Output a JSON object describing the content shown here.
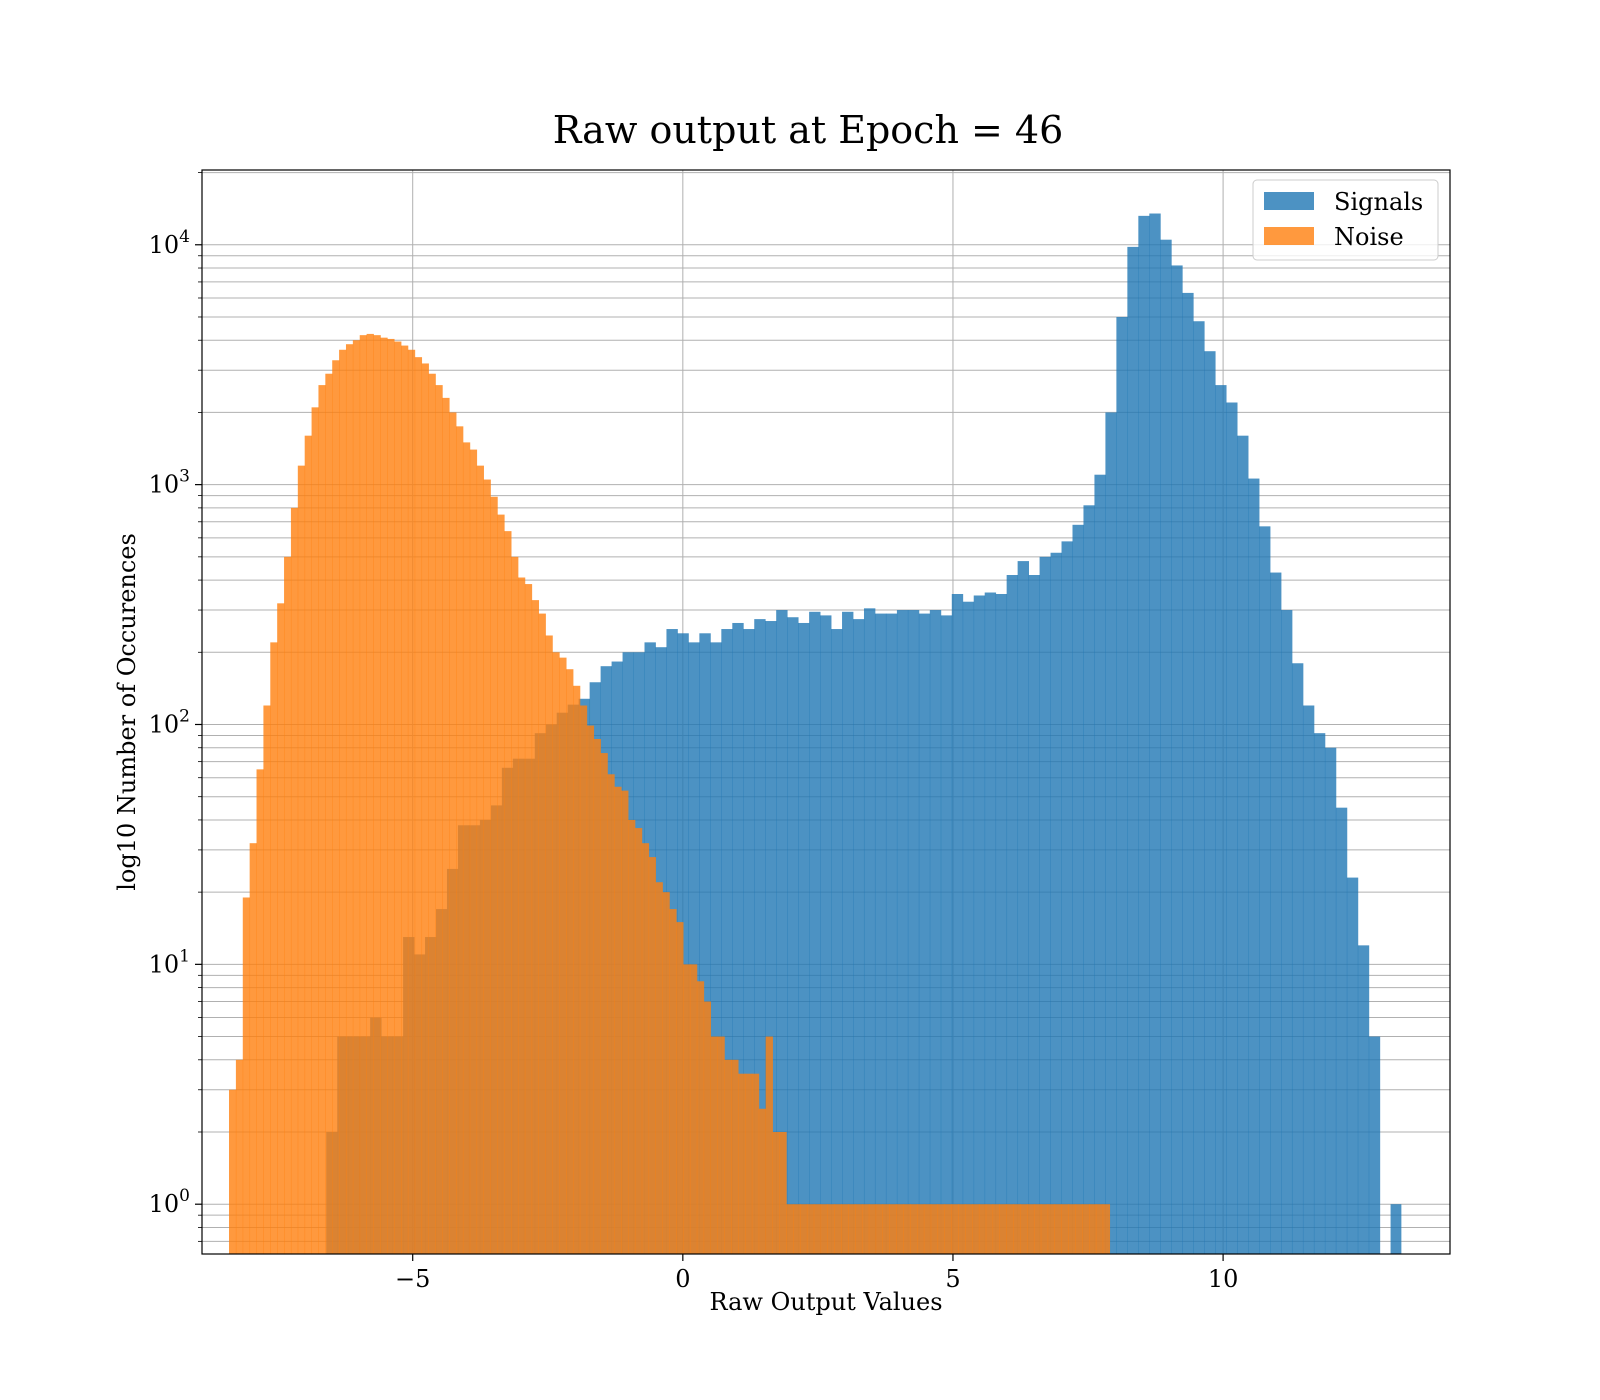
{
  "chart_data": {
    "type": "bar",
    "title": "Raw output at Epoch = 46",
    "xlabel": "Raw Output Values",
    "ylabel": "log10 Number of Occurences",
    "xlim": [
      -8.9,
      14.2
    ],
    "ylim": [
      0.62,
      20500
    ],
    "yscale": "log",
    "grid": true,
    "legend_position": "top-right",
    "xticks": [
      {
        "value": -5,
        "label": "−5"
      },
      {
        "value": 0,
        "label": "0"
      },
      {
        "value": 5,
        "label": "5"
      },
      {
        "value": 10,
        "label": "10"
      }
    ],
    "yticks": [
      {
        "value": 1,
        "base": "10",
        "exp": "0"
      },
      {
        "value": 10,
        "base": "10",
        "exp": "1"
      },
      {
        "value": 100,
        "base": "10",
        "exp": "2"
      },
      {
        "value": 1000,
        "base": "10",
        "exp": "3"
      },
      {
        "value": 10000,
        "base": "10",
        "exp": "4"
      }
    ],
    "series": [
      {
        "name": "Signals",
        "color": "#1f77b4",
        "opacity": 0.8,
        "bin_edges": [
          -6.6,
          12.9
        ],
        "bin_count": 96,
        "values": [
          2,
          5,
          5,
          5,
          6,
          5,
          5,
          13,
          11,
          13,
          17,
          25,
          38,
          38,
          40,
          46,
          66,
          72,
          72,
          92,
          100,
          112,
          121,
          128,
          150,
          175,
          183,
          200,
          200,
          220,
          210,
          250,
          240,
          220,
          240,
          220,
          250,
          265,
          250,
          275,
          270,
          300,
          280,
          265,
          295,
          285,
          250,
          295,
          275,
          305,
          290,
          290,
          300,
          300,
          290,
          300,
          285,
          350,
          325,
          345,
          355,
          350,
          420,
          480,
          420,
          500,
          520,
          580,
          680,
          820,
          1100,
          2000,
          5000,
          9800,
          13200,
          13500,
          10500,
          8200,
          6300,
          4800,
          3600,
          2600,
          2200,
          1600,
          1060,
          670,
          430,
          300,
          180,
          120,
          92,
          80,
          45,
          23,
          12,
          5
        ],
        "extra_bars": [
          {
            "x0": 13.1,
            "x1": 13.3,
            "value": 1
          }
        ]
      },
      {
        "name": "Noise",
        "color": "#ff7f0e",
        "opacity": 0.8,
        "bin_edges": [
          -8.4,
          7.9
        ],
        "bin_count": 128,
        "values": [
          3,
          4,
          19,
          32,
          65,
          120,
          220,
          320,
          500,
          800,
          1200,
          1600,
          2100,
          2600,
          2900,
          3300,
          3650,
          3850,
          4000,
          4200,
          4250,
          4200,
          4100,
          4050,
          3950,
          3800,
          3650,
          3400,
          3200,
          2900,
          2600,
          2300,
          2000,
          1750,
          1500,
          1400,
          1200,
          1050,
          890,
          750,
          640,
          500,
          410,
          385,
          330,
          290,
          235,
          200,
          190,
          170,
          145,
          120,
          99,
          87,
          76,
          62,
          55,
          53,
          40,
          37,
          32,
          28,
          22,
          20,
          17,
          15,
          10,
          10,
          8.5,
          7,
          5,
          5,
          4,
          4,
          3.5,
          3.5,
          3.5,
          2.5,
          5,
          2,
          2,
          1,
          1,
          1,
          1,
          1,
          1,
          1,
          1,
          1,
          1,
          1,
          1,
          1,
          1,
          1,
          1,
          1,
          1,
          1,
          1,
          1,
          1,
          1,
          1,
          1,
          1,
          1,
          1,
          1,
          1,
          1,
          1,
          1,
          1,
          1,
          1,
          1,
          1,
          1,
          1,
          1,
          1,
          1,
          1,
          1,
          1,
          1
        ]
      }
    ]
  }
}
